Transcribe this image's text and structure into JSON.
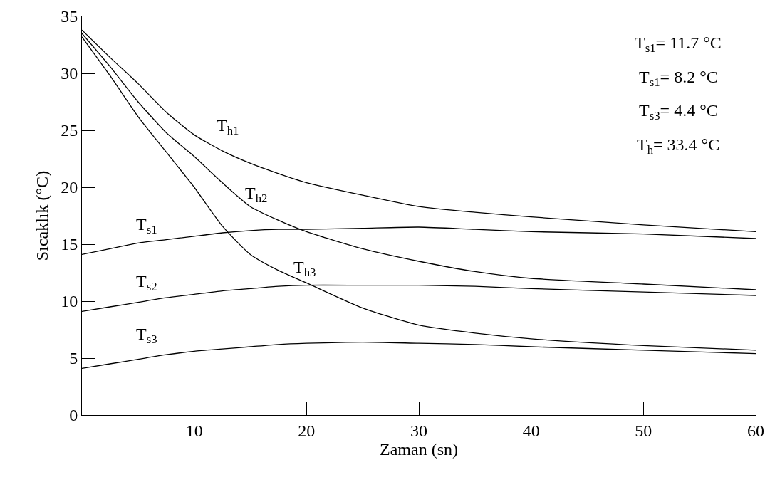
{
  "chart_data": {
    "type": "line",
    "xlabel": "Zaman (sn)",
    "ylabel": "Sıcaklık (°C)",
    "x": [
      0,
      2.5,
      5,
      7.5,
      10,
      12.5,
      15,
      17.5,
      20,
      25,
      30,
      35,
      40,
      50,
      60
    ],
    "series": [
      {
        "name": "T$_{h1}$",
        "color": "#000000",
        "values": [
          33.8,
          31.4,
          29.1,
          26.6,
          24.6,
          23.2,
          22.1,
          21.2,
          20.4,
          19.3,
          18.3,
          17.8,
          17.4,
          16.7,
          16.1
        ]
      },
      {
        "name": "T$_{h2}$",
        "color": "#000000",
        "values": [
          33.5,
          30.6,
          27.5,
          24.8,
          22.7,
          20.4,
          18.3,
          17.1,
          16.1,
          14.6,
          13.5,
          12.6,
          12.0,
          11.5,
          11.0
        ]
      },
      {
        "name": "T$_{h3}$",
        "color": "#000000",
        "values": [
          33.2,
          29.8,
          26.2,
          23.1,
          20.0,
          16.6,
          14.1,
          12.7,
          11.6,
          9.4,
          7.9,
          7.2,
          6.7,
          6.1,
          5.7
        ]
      },
      {
        "name": "T$_{s1}$",
        "color": "#000000",
        "values": [
          14.1,
          14.6,
          15.1,
          15.4,
          15.7,
          16.0,
          16.2,
          16.3,
          16.3,
          16.4,
          16.5,
          16.3,
          16.1,
          15.9,
          15.5
        ]
      },
      {
        "name": "T$_{s2}$",
        "color": "#000000",
        "values": [
          9.1,
          9.5,
          9.9,
          10.3,
          10.6,
          10.9,
          11.1,
          11.3,
          11.4,
          11.4,
          11.4,
          11.3,
          11.1,
          10.8,
          10.5
        ]
      },
      {
        "name": "T$_{s3}$",
        "color": "#000000",
        "values": [
          4.1,
          4.5,
          4.9,
          5.3,
          5.6,
          5.8,
          6.0,
          6.2,
          6.3,
          6.4,
          6.3,
          6.2,
          6.0,
          5.7,
          5.4
        ]
      }
    ],
    "xlim": [
      0,
      60
    ],
    "xticks": [
      10,
      20,
      30,
      40,
      50,
      60
    ],
    "ylim": [
      0,
      35
    ],
    "yticks": [
      0,
      5,
      10,
      15,
      20,
      25,
      30,
      35
    ],
    "grid": false,
    "legend": false,
    "marker": "none",
    "line_style": "solid",
    "annotations": [
      "T$_{s1}$= 11.7 °C",
      "T$_{s1}$= 8.2 °C",
      "T$_{s3}$= 4.4 °C",
      "T$_{h}$= 33.4 °C"
    ]
  }
}
